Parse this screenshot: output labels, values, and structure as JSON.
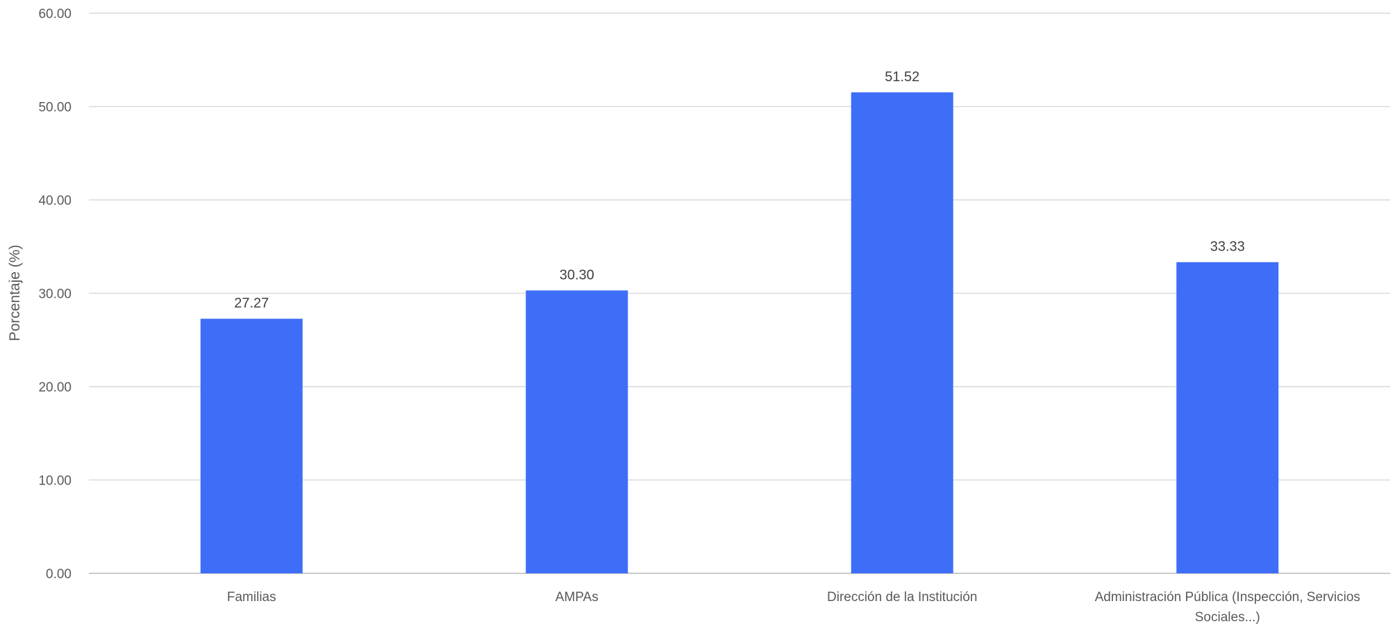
{
  "chart_data": {
    "type": "bar",
    "title": "",
    "xlabel": "",
    "ylabel": "Porcentaje (%)",
    "categories": [
      "Familias",
      "AMPAs",
      "Dirección de la Institución",
      [
        "Administración Pública (Inspección, Servicios",
        "Sociales...)"
      ]
    ],
    "values": [
      27.27,
      30.3,
      51.52,
      33.33
    ],
    "value_labels": [
      "27.27",
      "30.30",
      "51.52",
      "33.33"
    ],
    "ylim": [
      0,
      60
    ],
    "yticks": [
      0,
      10,
      20,
      30,
      40,
      50,
      60
    ],
    "ytick_labels": [
      "0.00",
      "10.00",
      "20.00",
      "30.00",
      "40.00",
      "50.00",
      "60.00"
    ],
    "grid": true,
    "legend": "none",
    "bar_color": "#3e6df8",
    "grid_color": "#d9d9d9"
  }
}
